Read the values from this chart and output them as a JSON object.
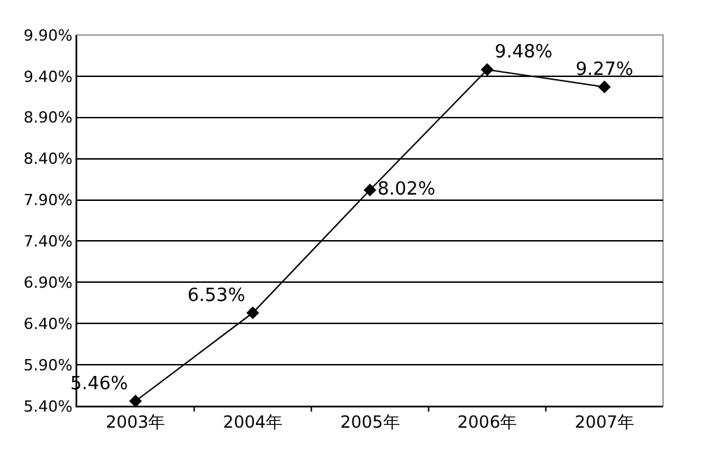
{
  "chart_data": {
    "type": "line",
    "categories": [
      "2003年",
      "2004年",
      "2005年",
      "2006年",
      "2007年"
    ],
    "series": [
      {
        "color": "#000000",
        "values": [
          5.46,
          6.53,
          8.02,
          9.48,
          9.27
        ],
        "value_labels": [
          "5.46%",
          "6.53%",
          "8.02%",
          "9.48%",
          "9.27%"
        ]
      }
    ],
    "ylim": [
      5.4,
      9.9
    ],
    "yticks": [
      {
        "value": 5.4,
        "label": "5.40%"
      },
      {
        "value": 5.9,
        "label": "5.90%"
      },
      {
        "value": 6.4,
        "label": "6.40%"
      },
      {
        "value": 6.9,
        "label": "6.90%"
      },
      {
        "value": 7.4,
        "label": "7.40%"
      },
      {
        "value": 7.9,
        "label": "7.90%"
      },
      {
        "value": 8.4,
        "label": "8.40%"
      },
      {
        "value": 8.9,
        "label": "8.90%"
      },
      {
        "value": 9.4,
        "label": "9.40%"
      },
      {
        "value": 9.9,
        "label": "9.90%"
      }
    ],
    "grid": "y",
    "marker": "diamond",
    "line_style": "solid"
  }
}
